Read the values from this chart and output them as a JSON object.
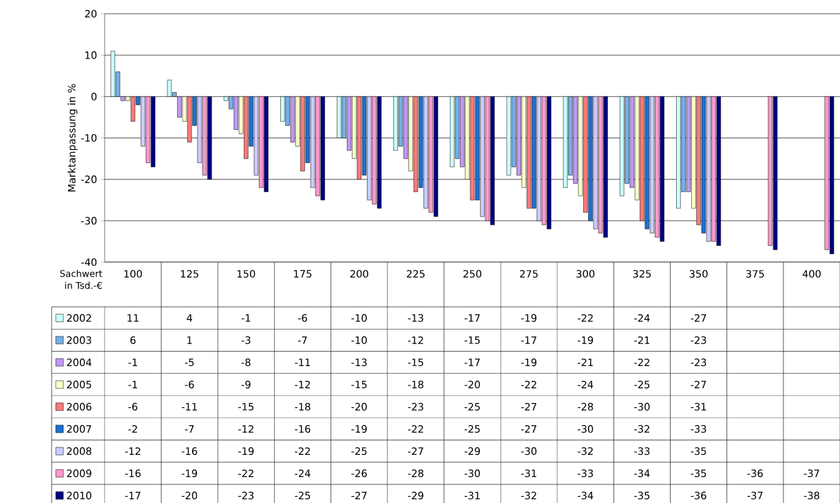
{
  "chart_data": {
    "type": "bar",
    "xlabel": "Sachwert in Tsd.-€",
    "ylabel": "Marktanpassung in %",
    "categories": [
      "100",
      "125",
      "150",
      "175",
      "200",
      "225",
      "250",
      "275",
      "300",
      "325",
      "350",
      "375",
      "400"
    ],
    "series": [
      {
        "name": "2002",
        "color": "#ccffff",
        "values": [
          11,
          4,
          -1,
          -6,
          -10,
          -13,
          -17,
          -19,
          -22,
          -24,
          -27,
          null,
          null
        ]
      },
      {
        "name": "2003",
        "color": "#77b0e8",
        "values": [
          6,
          1,
          -3,
          -7,
          -10,
          -12,
          -15,
          -17,
          -19,
          -21,
          -23,
          null,
          null
        ]
      },
      {
        "name": "2004",
        "color": "#c299f5",
        "values": [
          -1,
          -5,
          -8,
          -11,
          -13,
          -15,
          -17,
          -19,
          -21,
          -22,
          -23,
          null,
          null
        ]
      },
      {
        "name": "2005",
        "color": "#ffffcc",
        "values": [
          -1,
          -6,
          -9,
          -12,
          -15,
          -18,
          -20,
          -22,
          -24,
          -25,
          -27,
          null,
          null
        ]
      },
      {
        "name": "2006",
        "color": "#f97a7a",
        "values": [
          -6,
          -11,
          -15,
          -18,
          -20,
          -23,
          -25,
          -27,
          -28,
          -30,
          -31,
          null,
          null
        ]
      },
      {
        "name": "2007",
        "color": "#1f6fd0",
        "values": [
          -2,
          -7,
          -12,
          -16,
          -19,
          -22,
          -25,
          -27,
          -30,
          -32,
          -33,
          null,
          null
        ]
      },
      {
        "name": "2008",
        "color": "#ccccff",
        "values": [
          -12,
          -16,
          -19,
          -22,
          -25,
          -27,
          -29,
          -30,
          -32,
          -33,
          -35,
          null,
          null
        ]
      },
      {
        "name": "2009",
        "color": "#ff99cc",
        "values": [
          -16,
          -19,
          -22,
          -24,
          -26,
          -28,
          -30,
          -31,
          -33,
          -34,
          -35,
          -36,
          -37
        ]
      },
      {
        "name": "2010",
        "color": "#000080",
        "values": [
          -17,
          -20,
          -23,
          -25,
          -27,
          -29,
          -31,
          -32,
          -34,
          -35,
          -36,
          -37,
          -38
        ]
      }
    ],
    "ylim": [
      -40,
      20
    ],
    "yticks": [
      -40,
      -30,
      -20,
      -10,
      0,
      10,
      20
    ],
    "grid": "y",
    "data_labels": true,
    "legend": "bottom left"
  }
}
